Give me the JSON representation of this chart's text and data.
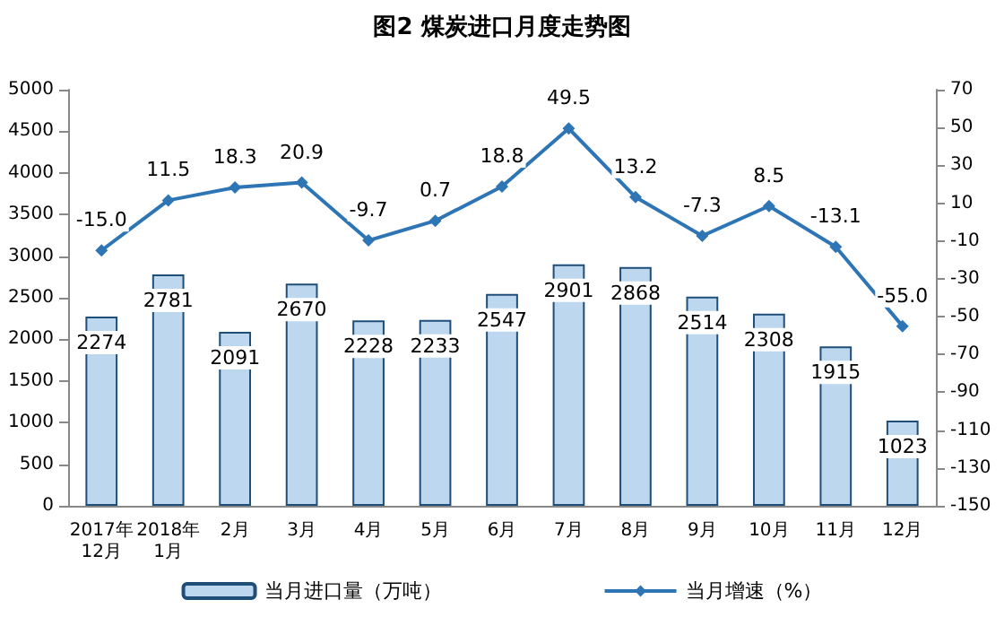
{
  "chart_data": {
    "type": "bar",
    "title": "图2 煤炭进口月度走势图",
    "categories": [
      "2017年\n12月",
      "2018年\n1月",
      "2月",
      "3月",
      "4月",
      "5月",
      "6月",
      "7月",
      "8月",
      "9月",
      "10月",
      "11月",
      "12月"
    ],
    "series": [
      {
        "name": "当月进口量（万吨）",
        "color": "#bdd7ee",
        "values": [
          2274,
          2781,
          2091,
          2670,
          2228,
          2233,
          2547,
          2901,
          2868,
          2514,
          2308,
          1915,
          1023
        ],
        "value_labels": [
          "2274",
          "2781",
          "2091",
          "2670",
          "2228",
          "2233",
          "2547",
          "2901",
          "2868",
          "2514",
          "2308",
          "1915",
          "1023"
        ]
      },
      {
        "name": "当月增速（%）",
        "type": "line",
        "axis": "y2",
        "color": "#2e75b6",
        "values": [
          -15.0,
          11.5,
          18.3,
          20.9,
          -9.7,
          0.7,
          18.8,
          49.5,
          13.2,
          -7.3,
          8.5,
          -13.1,
          -55.0
        ],
        "value_labels": [
          "-15.0",
          "11.5",
          "18.3",
          "20.9",
          "-9.7",
          "0.7",
          "18.8",
          "49.5",
          "13.2",
          "-7.3",
          "8.5",
          "-13.1",
          "-55.0"
        ]
      }
    ],
    "ylim": [
      0,
      5000
    ],
    "yticks": [
      0,
      500,
      1000,
      1500,
      2000,
      2500,
      3000,
      3500,
      4000,
      4500,
      5000
    ],
    "y2lim": [
      -150,
      70
    ],
    "y2ticks": [
      -150,
      -130,
      -110,
      -90,
      -70,
      -50,
      -30,
      -10,
      10,
      30,
      50,
      70
    ],
    "legend": "bottom",
    "marker": "diamond"
  }
}
